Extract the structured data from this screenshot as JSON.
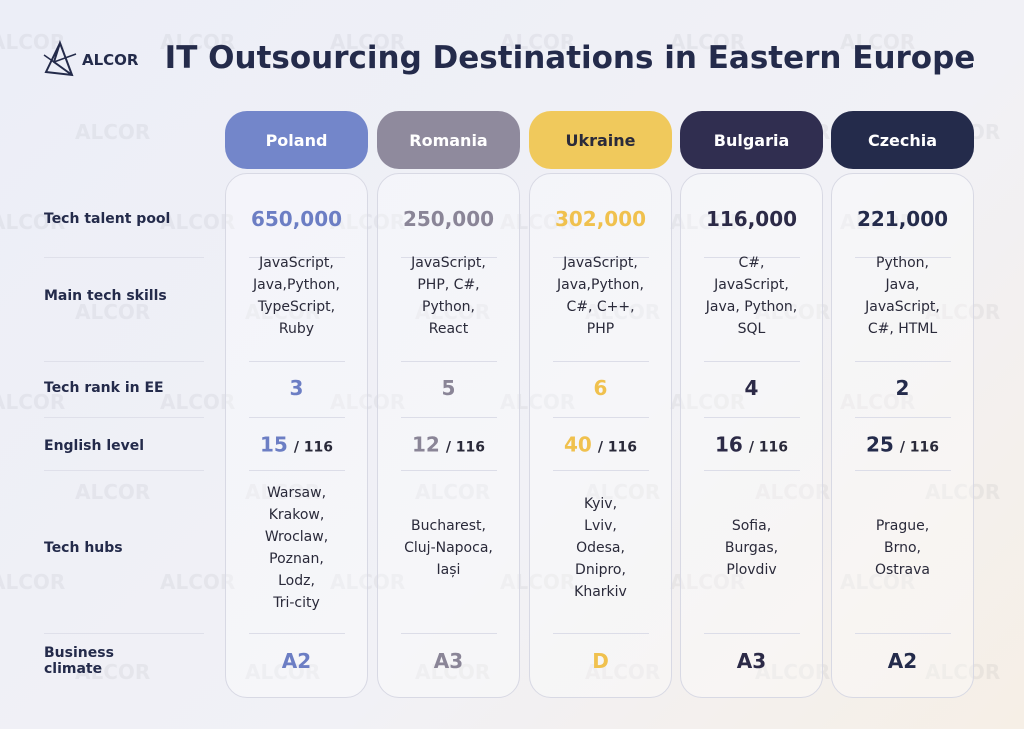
{
  "logo": "ALCOR",
  "watermark": "ALCOR",
  "title": "IT Outsourcing Destinations in Eastern Europe",
  "row_labels": [
    "Tech talent pool",
    "Main tech skills",
    "Tech rank in EE",
    "English level",
    "Tech hubs",
    "Business climate"
  ],
  "columns": [
    {
      "name": "Poland",
      "header_color": "#7386ca",
      "header_text_color": "#ffffff",
      "value_color": "#6c7ec4",
      "talent_pool": "650,000",
      "skills": [
        "JavaScript,",
        "Java,Python,",
        "TypeScript,",
        "Ruby"
      ],
      "rank": "3",
      "english": "15",
      "english_total": "/ 116",
      "hubs": [
        "Warsaw,",
        "Krakow,",
        "Wroclaw,",
        "Poznan,",
        "Lodz,",
        "Tri-city"
      ],
      "climate": "A2"
    },
    {
      "name": "Romania",
      "header_color": "#8f8a9d",
      "header_text_color": "#ffffff",
      "value_color": "#8a8597",
      "talent_pool": "250,000",
      "skills": [
        "JavaScript,",
        "PHP, C#,",
        "Python,",
        "React"
      ],
      "rank": "5",
      "english": "12",
      "english_total": "/ 116",
      "hubs": [
        "Bucharest,",
        "Cluj-Napoca,",
        "Iași"
      ],
      "climate": "A3"
    },
    {
      "name": "Ukraine",
      "header_color": "#f0c95c",
      "header_text_color": "#2a2a3a",
      "value_color": "#f0c14e",
      "talent_pool": "302,000",
      "skills": [
        "JavaScript,",
        "Java,Python,",
        "C#, C++,",
        "PHP"
      ],
      "rank": "6",
      "english": "40",
      "english_total": "/ 116",
      "hubs": [
        "Kyiv,",
        "Lviv,",
        "Odesa,",
        "Dnipro,",
        "Kharkiv"
      ],
      "climate": "D"
    },
    {
      "name": "Bulgaria",
      "header_color": "#302e50",
      "header_text_color": "#ffffff",
      "value_color": "#2c2a47",
      "talent_pool": "116,000",
      "skills": [
        "C#,",
        "JavaScript,",
        "Java, Python,",
        "SQL"
      ],
      "rank": "4",
      "english": "16",
      "english_total": "/ 116",
      "hubs": [
        "Sofia,",
        "Burgas,",
        "Plovdiv"
      ],
      "climate": "A3"
    },
    {
      "name": "Czechia",
      "header_color": "#242b4b",
      "header_text_color": "#ffffff",
      "value_color": "#242b4b",
      "talent_pool": "221,000",
      "skills": [
        "Python,",
        "Java,",
        "JavaScript,",
        "C#, HTML"
      ],
      "rank": "2",
      "english": "25",
      "english_total": "/ 116",
      "hubs": [
        "Prague,",
        "Brno,",
        "Ostrava"
      ],
      "climate": "A2"
    }
  ]
}
